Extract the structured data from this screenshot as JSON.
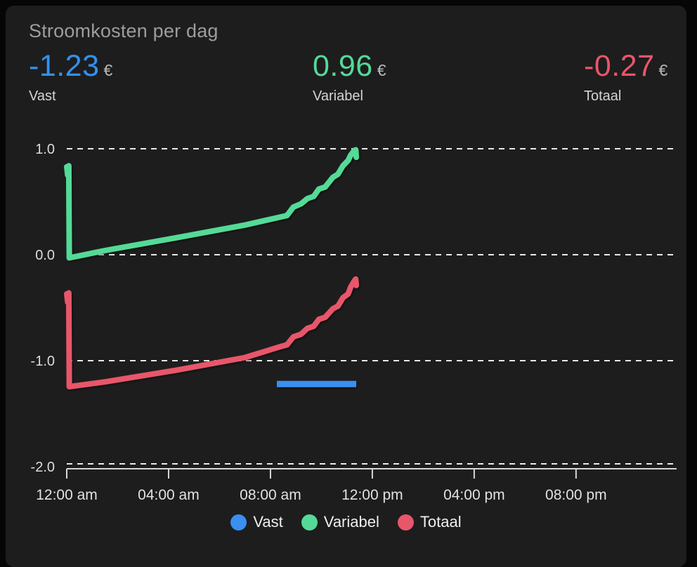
{
  "title": "Stroomkosten per dag",
  "stats": [
    {
      "value": "-1.23",
      "currency": "€",
      "label": "Vast",
      "color": "#3291f0"
    },
    {
      "value": "0.96",
      "currency": "€",
      "label": "Variabel",
      "color": "#54da97"
    },
    {
      "value": "-0.27",
      "currency": "€",
      "label": "Totaal",
      "color": "#e8566a"
    }
  ],
  "chart_data": {
    "type": "line",
    "title": "Stroomkosten per dag",
    "x_unit": "hour_of_day",
    "xlim": [
      0,
      23.95
    ],
    "ylim": [
      -2.0,
      1.0
    ],
    "grid": "horizontal-dashed",
    "legend_position": "bottom",
    "xticks": [
      {
        "h": 0,
        "label": "12:00 am"
      },
      {
        "h": 4,
        "label": "04:00 am"
      },
      {
        "h": 8,
        "label": "08:00 am"
      },
      {
        "h": 12,
        "label": "12:00 pm"
      },
      {
        "h": 16,
        "label": "04:00 pm"
      },
      {
        "h": 20,
        "label": "08:00 pm"
      }
    ],
    "yticks": [
      {
        "v": 1.0,
        "label": "1.0"
      },
      {
        "v": 0.0,
        "label": "0.0"
      },
      {
        "v": -1.0,
        "label": "-1.0"
      },
      {
        "v": -2.0,
        "label": "-2.0"
      }
    ],
    "series": [
      {
        "name": "Vast",
        "color": "#3a8ff0",
        "width": 9,
        "linecap": "butt",
        "points": [
          [
            8.25,
            -1.22
          ],
          [
            11.37,
            -1.22
          ]
        ]
      },
      {
        "name": "Variabel",
        "color": "#54da97",
        "width": 8,
        "linecap": "round",
        "points": [
          [
            0,
            0.83
          ],
          [
            0.04,
            0.75
          ],
          [
            0.08,
            0.84
          ],
          [
            0.1,
            -0.03
          ],
          [
            1.5,
            0.04
          ],
          [
            4.3,
            0.16
          ],
          [
            7.0,
            0.28
          ],
          [
            8.65,
            0.37
          ],
          [
            8.9,
            0.45
          ],
          [
            9.2,
            0.48
          ],
          [
            9.45,
            0.53
          ],
          [
            9.7,
            0.55
          ],
          [
            9.9,
            0.62
          ],
          [
            10.15,
            0.64
          ],
          [
            10.45,
            0.73
          ],
          [
            10.65,
            0.76
          ],
          [
            10.85,
            0.84
          ],
          [
            11.05,
            0.89
          ],
          [
            11.15,
            0.94
          ],
          [
            11.3,
            0.985
          ],
          [
            11.35,
            0.99
          ],
          [
            11.37,
            0.92
          ]
        ]
      },
      {
        "name": "Totaal",
        "color": "#e8566a",
        "width": 8,
        "linecap": "round",
        "points": [
          [
            0,
            -0.37
          ],
          [
            0.04,
            -0.45
          ],
          [
            0.08,
            -0.36
          ],
          [
            0.1,
            -1.245
          ],
          [
            1.5,
            -1.2
          ],
          [
            4.3,
            -1.09
          ],
          [
            7.0,
            -0.97
          ],
          [
            8.35,
            -0.87
          ],
          [
            8.65,
            -0.85
          ],
          [
            8.9,
            -0.775
          ],
          [
            9.2,
            -0.75
          ],
          [
            9.45,
            -0.695
          ],
          [
            9.7,
            -0.675
          ],
          [
            9.9,
            -0.61
          ],
          [
            10.15,
            -0.59
          ],
          [
            10.45,
            -0.51
          ],
          [
            10.65,
            -0.485
          ],
          [
            10.85,
            -0.405
          ],
          [
            11.05,
            -0.37
          ],
          [
            11.15,
            -0.305
          ],
          [
            11.3,
            -0.245
          ],
          [
            11.35,
            -0.23
          ],
          [
            11.37,
            -0.29
          ]
        ]
      }
    ]
  },
  "legend": {
    "items": [
      {
        "label": "Vast",
        "color": "#3a8ff0"
      },
      {
        "label": "Variabel",
        "color": "#54da97"
      },
      {
        "label": "Totaal",
        "color": "#e8566a"
      }
    ]
  }
}
